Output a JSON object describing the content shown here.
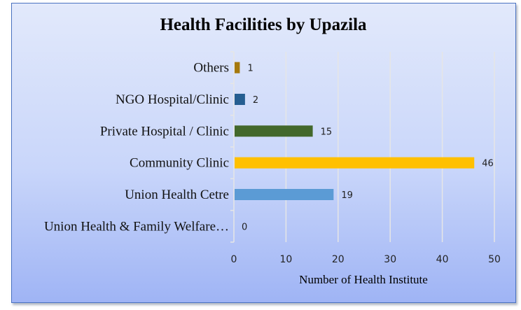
{
  "chart_data": {
    "type": "bar",
    "orientation": "horizontal",
    "title": "Health Facilities by Upazila",
    "xlabel": "Number of Health Institute",
    "ylabel": "",
    "categories": [
      "Others",
      "NGO Hospital/Clinic",
      "Private Hospital / Clinic",
      "Community Clinic",
      "Union Health Cetre",
      "Union Health & Family Welfare…"
    ],
    "values": [
      1,
      2,
      15,
      46,
      19,
      0
    ],
    "data_labels": [
      "1",
      "2",
      "15",
      "46",
      "19",
      "0"
    ],
    "colors": [
      "#a5780c",
      "#255e91",
      "#43682b",
      "#ffc000",
      "#5b9bd5",
      "#5b9bd5"
    ],
    "xlim": [
      0,
      50
    ],
    "xticks": [
      "0",
      "10",
      "20",
      "30",
      "40",
      "50"
    ],
    "grid": true,
    "legend": "none"
  }
}
